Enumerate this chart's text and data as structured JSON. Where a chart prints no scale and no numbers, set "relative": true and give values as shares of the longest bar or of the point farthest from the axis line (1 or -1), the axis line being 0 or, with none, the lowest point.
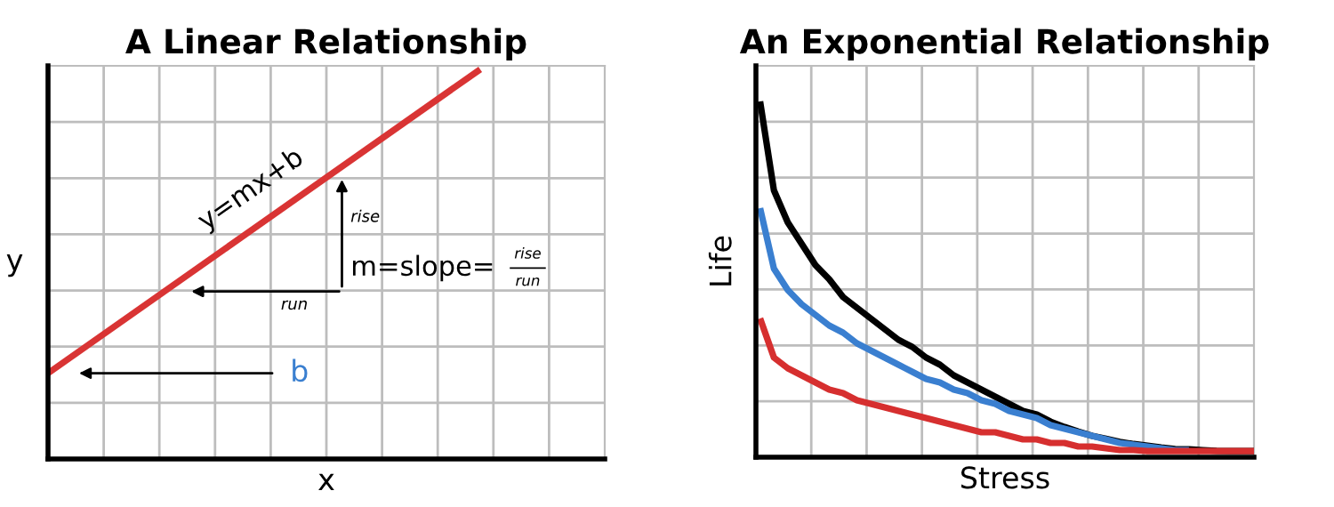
{
  "chart_data": [
    {
      "type": "line",
      "title": "A Linear Relationship",
      "xlabel": "x",
      "ylabel": "y",
      "relative": true,
      "grid": true,
      "categories": [
        null,
        null
      ],
      "series": [
        {
          "color": "#d93434",
          "values": [
            0.22,
            1
          ]
        }
      ],
      "annotations": [
        "y=mx+b",
        "rise",
        "run",
        "m=slope=",
        "rise",
        "run",
        "b"
      ]
    },
    {
      "type": "line",
      "title": "An Exponential Relationship",
      "xlabel": "Stress",
      "ylabel": "Life",
      "relative": true,
      "grid": true,
      "categories": [
        null,
        null,
        null,
        null,
        null,
        null,
        null,
        null,
        null,
        null,
        null,
        null,
        null,
        null,
        null,
        null,
        null,
        null,
        null,
        null,
        null,
        null,
        null,
        null,
        null,
        null,
        null,
        null,
        null,
        null,
        null,
        null,
        null,
        null,
        null,
        null,
        null
      ],
      "series": [
        {
          "color": "#000000",
          "values": [
            1.0,
            0.75,
            0.66,
            0.6,
            0.54,
            0.5,
            0.45,
            0.42,
            0.39,
            0.36,
            0.33,
            0.31,
            0.28,
            0.26,
            0.23,
            0.21,
            0.19,
            0.17,
            0.15,
            0.13,
            0.12,
            0.1,
            0.085,
            0.072,
            0.06,
            0.052,
            0.043,
            0.037,
            0.032,
            0.027,
            0.023,
            0.022,
            0.02,
            0.018,
            0.017,
            0.017,
            0.017
          ]
        },
        {
          "color": "#3a7fd0",
          "values": [
            0.7,
            0.53,
            0.47,
            0.43,
            0.4,
            0.37,
            0.35,
            0.32,
            0.3,
            0.28,
            0.26,
            0.24,
            0.22,
            0.21,
            0.19,
            0.18,
            0.16,
            0.15,
            0.13,
            0.12,
            0.11,
            0.09,
            0.08,
            0.07,
            0.06,
            0.05,
            0.04,
            0.035,
            0.03,
            0.025,
            0.02,
            0.02,
            null,
            null,
            null,
            null,
            null
          ]
        },
        {
          "color": "#d62f2f",
          "values": [
            0.39,
            0.28,
            0.25,
            0.23,
            0.21,
            0.19,
            0.18,
            0.16,
            0.15,
            0.14,
            0.13,
            0.12,
            0.11,
            0.1,
            0.09,
            0.08,
            0.07,
            0.07,
            0.06,
            0.05,
            0.05,
            0.04,
            0.04,
            0.03,
            0.03,
            0.025,
            0.02,
            0.02,
            0.017,
            0.017,
            0.017,
            0.017,
            0.017,
            0.017,
            0.017,
            0.017,
            0.017
          ]
        }
      ]
    }
  ]
}
